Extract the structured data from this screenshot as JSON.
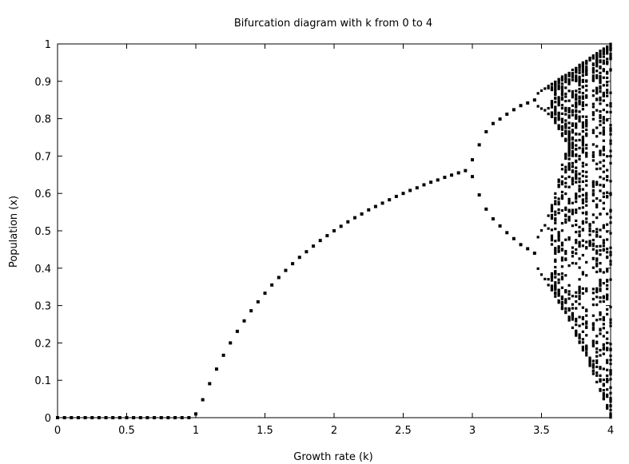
{
  "chart_data": {
    "type": "scatter",
    "title": "Bifurcation diagram with k from 0 to 4",
    "xlabel": "Growth rate (k)",
    "ylabel": "Population (x)",
    "xlim": [
      0,
      4
    ],
    "ylim": [
      0,
      1
    ],
    "x_ticks": [
      "0",
      "0.5",
      "1",
      "1.5",
      "2",
      "2.5",
      "3",
      "3.5",
      "4"
    ],
    "y_ticks": [
      "0",
      "0.1",
      "0.2",
      "0.3",
      "0.4",
      "0.5",
      "0.6",
      "0.7",
      "0.8",
      "0.9",
      "1"
    ],
    "grid": false,
    "legend": "none",
    "marker_color": "#000000",
    "series": [
      {
        "description_of_points": "Stable equilibrium x = 1 - 1/k for 0 <= k <= 3 (0 for k <= 1); period-2 pair for 3 < k < 3.449; higher periods and chaos to k = 4",
        "x": [
          0,
          0.05,
          0.1,
          0.15,
          0.2,
          0.25,
          0.3,
          0.35,
          0.4,
          0.45,
          0.5,
          0.55,
          0.6,
          0.65,
          0.7,
          0.75,
          0.8,
          0.85,
          0.9,
          0.95,
          1,
          1.05,
          1.1,
          1.15,
          1.2,
          1.25,
          1.3,
          1.35,
          1.4,
          1.45,
          1.5,
          1.55,
          1.6,
          1.65,
          1.7,
          1.75,
          1.8,
          1.85,
          1.9,
          1.95,
          2,
          2.05,
          2.1,
          2.15,
          2.2,
          2.25,
          2.3,
          2.35,
          2.4,
          2.45,
          2.5,
          2.55,
          2.6,
          2.65,
          2.7,
          2.75,
          2.8,
          2.85,
          2.9,
          2.95,
          3,
          3,
          3.05,
          3.05,
          3.1,
          3.1,
          3.15,
          3.15,
          3.2,
          3.2,
          3.25,
          3.25,
          3.3,
          3.3,
          3.35,
          3.35,
          3.4,
          3.4,
          3.45,
          3.45
        ],
        "y": [
          0,
          0,
          0,
          0,
          0,
          0,
          0,
          0,
          0,
          0,
          0,
          0,
          0,
          0,
          0,
          0,
          0,
          0,
          0,
          0,
          0.01,
          0.048,
          0.091,
          0.13,
          0.167,
          0.2,
          0.231,
          0.259,
          0.286,
          0.31,
          0.333,
          0.355,
          0.375,
          0.394,
          0.412,
          0.429,
          0.444,
          0.459,
          0.474,
          0.487,
          0.5,
          0.512,
          0.524,
          0.535,
          0.545,
          0.556,
          0.565,
          0.574,
          0.583,
          0.592,
          0.6,
          0.608,
          0.615,
          0.623,
          0.63,
          0.636,
          0.643,
          0.649,
          0.655,
          0.661,
          0.69,
          0.645,
          0.73,
          0.596,
          0.765,
          0.558,
          0.787,
          0.532,
          0.799,
          0.513,
          0.812,
          0.495,
          0.824,
          0.479,
          0.835,
          0.463,
          0.842,
          0.452,
          0.85,
          0.44
        ]
      }
    ]
  }
}
